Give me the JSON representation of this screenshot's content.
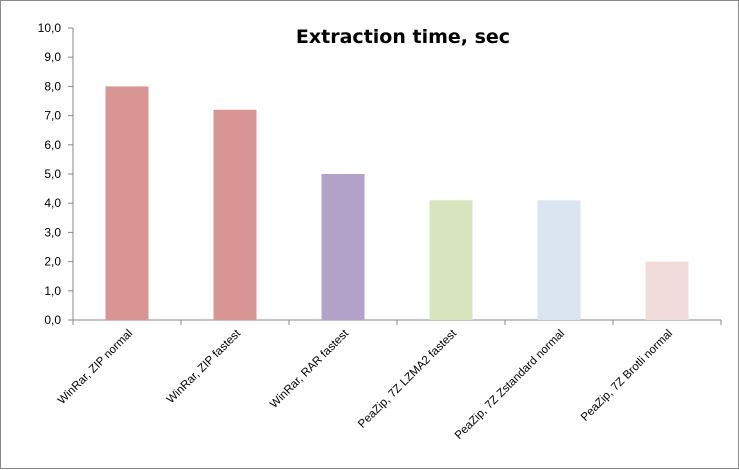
{
  "chart_data": {
    "type": "bar",
    "title": "Extraction time, sec",
    "xlabel": "",
    "ylabel": "",
    "categories": [
      "WinRar, ZIP normal",
      "WinRar, ZIP fastest",
      "WinRar, RAR fastest",
      "PeaZip, 7Z LZMA2 fastest",
      "PeaZip, 7Z Zstandard normal",
      "PeaZip, 7Z Brotli normal"
    ],
    "values": [
      8.0,
      7.2,
      5.0,
      4.1,
      4.1,
      2.0
    ],
    "colors": [
      "#d99594",
      "#d99594",
      "#b2a2c7",
      "#d7e4bd",
      "#dbe5f1",
      "#f2dcdb"
    ],
    "ylim": [
      0,
      10
    ],
    "yticks": [
      "0,0",
      "1,0",
      "2,0",
      "3,0",
      "4,0",
      "5,0",
      "6,0",
      "7,0",
      "8,0",
      "9,0",
      "10,0"
    ],
    "grid": false,
    "legend": "none"
  }
}
